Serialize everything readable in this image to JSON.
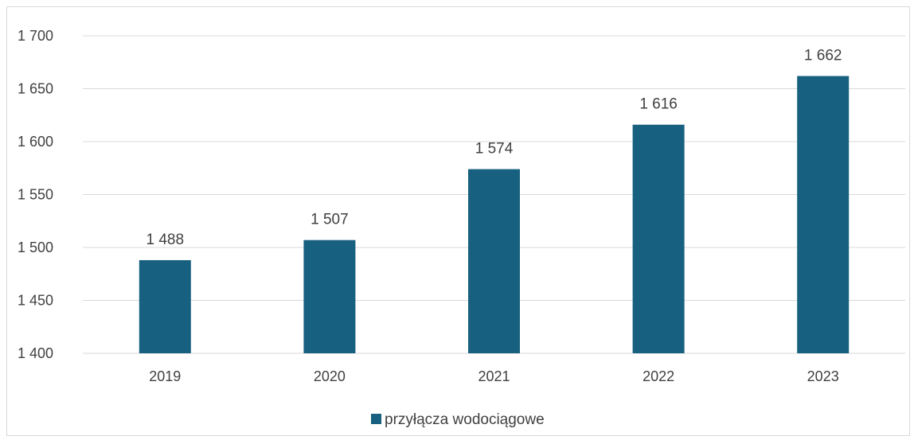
{
  "chart_data": {
    "type": "bar",
    "categories": [
      "2019",
      "2020",
      "2021",
      "2022",
      "2023"
    ],
    "series": [
      {
        "name": "przyłącza wodociągowe",
        "values": [
          1488,
          1507,
          1574,
          1616,
          1662
        ],
        "color": "#17607f"
      }
    ],
    "data_labels": [
      "1 488",
      "1 507",
      "1 574",
      "1 616",
      "1 662"
    ],
    "ylim": [
      1400,
      1700
    ],
    "yticks": [
      1400,
      1450,
      1500,
      1550,
      1600,
      1650,
      1700
    ],
    "ytick_labels": [
      "1 400",
      "1 450",
      "1 500",
      "1 550",
      "1 600",
      "1 650",
      "1 700"
    ],
    "grid": true,
    "gridline_color": "#d9d9d9",
    "legend_position": "bottom"
  }
}
